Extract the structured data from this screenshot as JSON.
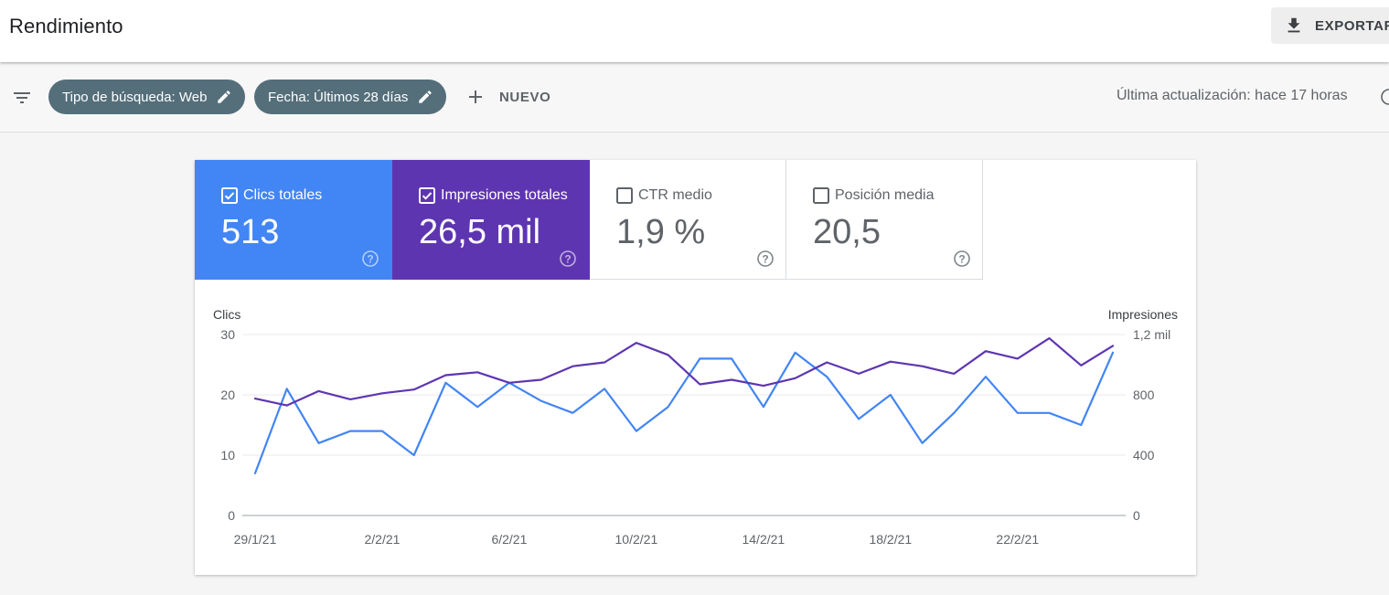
{
  "header": {
    "title": "Rendimiento",
    "export_label": "EXPORTAR"
  },
  "filters": {
    "chips": [
      {
        "label": "Tipo de búsqueda: Web"
      },
      {
        "label": "Fecha: Últimos 28 días"
      }
    ],
    "new_label": "NUEVO",
    "last_update": "Última actualización: hace 17 horas"
  },
  "metrics": [
    {
      "label": "Clics totales",
      "value": "513",
      "checked": true,
      "color": "#4285f4"
    },
    {
      "label": "Impresiones totales",
      "value": "26,5 mil",
      "checked": true,
      "color": "#5e35b1"
    },
    {
      "label": "CTR medio",
      "value": "1,9 %",
      "checked": false,
      "color": "#ffffff"
    },
    {
      "label": "Posición media",
      "value": "20,5",
      "checked": false,
      "color": "#ffffff"
    }
  ],
  "chart_data": {
    "type": "line",
    "x": [
      "29/1/21",
      "30/1/21",
      "31/1/21",
      "1/2/21",
      "2/2/21",
      "3/2/21",
      "4/2/21",
      "5/2/21",
      "6/2/21",
      "7/2/21",
      "8/2/21",
      "9/2/21",
      "10/2/21",
      "11/2/21",
      "12/2/21",
      "13/2/21",
      "14/2/21",
      "15/2/21",
      "16/2/21",
      "17/2/21",
      "18/2/21",
      "19/2/21",
      "20/2/21",
      "21/2/21",
      "22/2/21",
      "23/2/21",
      "24/2/21",
      "25/2/21"
    ],
    "x_tick_labels": [
      "29/1/21",
      "2/2/21",
      "6/2/21",
      "10/2/21",
      "14/2/21",
      "18/2/21",
      "22/2/21"
    ],
    "left_axis": {
      "label": "Clics",
      "ticks": [
        "0",
        "10",
        "20",
        "30"
      ],
      "ylim": [
        0,
        30
      ]
    },
    "right_axis": {
      "label": "Impresiones",
      "ticks": [
        "0",
        "400",
        "800",
        "1,2 mil"
      ],
      "ylim": [
        0,
        1200
      ]
    },
    "grid": true,
    "series": [
      {
        "name": "Clics totales",
        "axis": "left",
        "color": "#4285f4",
        "values": [
          7,
          21,
          12,
          14,
          14,
          10,
          22,
          18,
          22,
          19,
          17,
          21,
          14,
          18,
          26,
          26,
          18,
          27,
          23,
          16,
          20,
          12,
          17,
          23,
          17,
          17,
          15,
          27
        ]
      },
      {
        "name": "Impresiones totales",
        "axis": "right",
        "color": "#5e35b1",
        "values": [
          775,
          730,
          825,
          770,
          810,
          835,
          930,
          950,
          880,
          900,
          990,
          1015,
          1145,
          1065,
          870,
          900,
          860,
          910,
          1015,
          940,
          1020,
          990,
          940,
          1090,
          1040,
          1175,
          995,
          1125
        ]
      }
    ]
  }
}
